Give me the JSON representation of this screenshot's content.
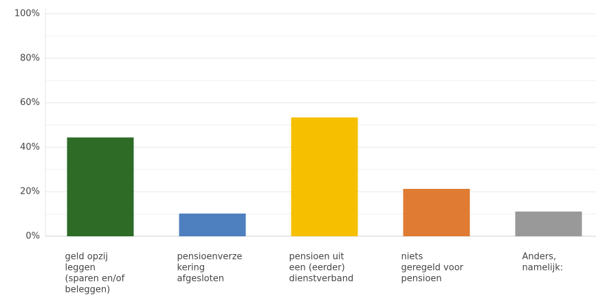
{
  "chart_data": {
    "type": "bar",
    "categories": [
      [
        "geld opzij",
        "leggen",
        "(sparen en/of",
        "beleggen)"
      ],
      [
        "pensioenverze",
        "kering",
        "afgesloten"
      ],
      [
        "pensioen uit",
        "een (eerder)",
        "dienstverband"
      ],
      [
        "niets",
        "geregeld voor",
        "pensioen"
      ],
      [
        "Anders,",
        "namelijk:"
      ]
    ],
    "values": [
      44.4,
      10.2,
      53.4,
      21.3,
      11.1
    ],
    "colors": [
      "#2d6b27",
      "#4e7fbf",
      "#f6bf00",
      "#df7b33",
      "#999999"
    ],
    "ylim": [
      0,
      100
    ],
    "yticks": [
      {
        "value": 0,
        "label": "0%"
      },
      {
        "value": 20,
        "label": "20%"
      },
      {
        "value": 40,
        "label": "40%"
      },
      {
        "value": 60,
        "label": "60%"
      },
      {
        "value": 80,
        "label": "80%"
      },
      {
        "value": 100,
        "label": "100%"
      }
    ],
    "minor_yticks": [
      10,
      30,
      50,
      70,
      90
    ],
    "grid": true
  }
}
